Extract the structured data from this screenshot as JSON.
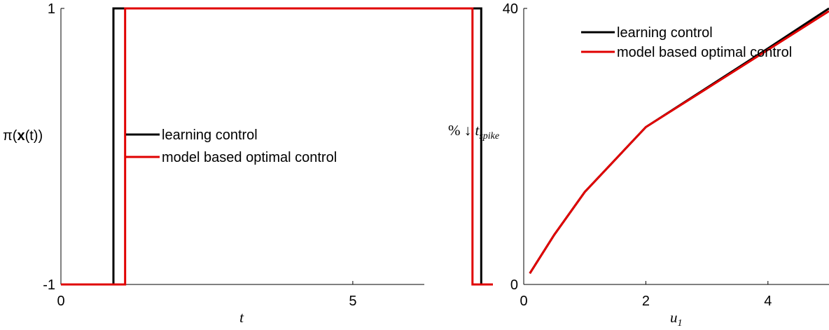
{
  "chart_data": [
    {
      "type": "line",
      "xlabel": "t",
      "ylabel": {
        "prefix": "π(",
        "bold": "x",
        "suffix": "(t))"
      },
      "xlim": [
        0,
        8
      ],
      "ylim": [
        -1,
        1
      ],
      "xticks": [
        {
          "value": 0,
          "label": "0"
        },
        {
          "value": 5,
          "label": "5"
        }
      ],
      "yticks": [
        {
          "value": -1,
          "label": "-1"
        },
        {
          "value": 1,
          "label": "1"
        }
      ],
      "grid": false,
      "legend_position": "center",
      "series": [
        {
          "name": "learning control",
          "color": "#000000",
          "x": [
            0,
            0.9,
            0.9,
            7.2,
            7.2,
            7.4
          ],
          "y": [
            -1,
            -1,
            1,
            1,
            -1,
            -1
          ]
        },
        {
          "name": "model based optimal control",
          "color": "#e00000",
          "x": [
            0,
            1.1,
            1.1,
            7.05,
            7.05,
            7.4
          ],
          "y": [
            -1,
            -1,
            1,
            1,
            -1,
            -1
          ]
        }
      ]
    },
    {
      "type": "line",
      "xlabel": {
        "base": "u",
        "sub": "1"
      },
      "ylabel": {
        "prefix": "% ↓ ",
        "var": "t",
        "sub": "spike"
      },
      "xlim": [
        0,
        5
      ],
      "ylim": [
        0,
        40
      ],
      "xticks": [
        {
          "value": 0,
          "label": "0"
        },
        {
          "value": 2,
          "label": "2"
        },
        {
          "value": 4,
          "label": "4"
        }
      ],
      "yticks": [
        {
          "value": 0,
          "label": "0"
        },
        {
          "value": 40,
          "label": "40"
        }
      ],
      "grid": false,
      "legend_position": "top-right",
      "series": [
        {
          "name": "learning control",
          "color": "#000000",
          "x": [
            0.1,
            0.5,
            1,
            2,
            3,
            4,
            5
          ],
          "y": [
            1.6,
            7.2,
            13.4,
            22.8,
            28.5,
            34.2,
            40.0
          ]
        },
        {
          "name": "model based optimal control",
          "color": "#e00000",
          "x": [
            0.1,
            0.5,
            1,
            2,
            3,
            4,
            5
          ],
          "y": [
            1.6,
            7.2,
            13.4,
            22.8,
            28.4,
            34.0,
            39.6
          ]
        }
      ]
    }
  ]
}
